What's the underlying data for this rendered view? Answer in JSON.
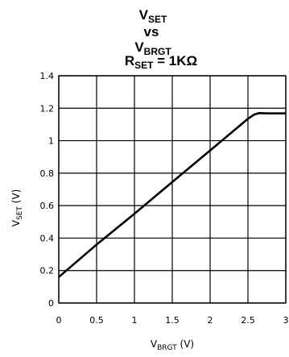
{
  "chart_data": {
    "type": "line",
    "title": {
      "line1": {
        "main": "V",
        "sub": "SET"
      },
      "line2": "vs",
      "line3": {
        "main": "V",
        "sub": "BRGT"
      },
      "line4": {
        "main": "R",
        "sub": "SET",
        "rest": " = 1KΩ"
      }
    },
    "xlabel": {
      "main": "V",
      "sub": "BRGT",
      "rest": " (V)"
    },
    "ylabel": {
      "main": "V",
      "sub": "SET",
      "rest": " (V)"
    },
    "xlim": [
      0,
      3
    ],
    "ylim": [
      0,
      1.4
    ],
    "xticks": [
      {
        "value": 0,
        "label": "0"
      },
      {
        "value": 0.5,
        "label": "0.5"
      },
      {
        "value": 1,
        "label": "1"
      },
      {
        "value": 1.5,
        "label": "1.5"
      },
      {
        "value": 2,
        "label": "2"
      },
      {
        "value": 2.5,
        "label": "2.5"
      },
      {
        "value": 3,
        "label": "3"
      }
    ],
    "yticks": [
      {
        "value": 0,
        "label": "0"
      },
      {
        "value": 0.2,
        "label": "0.2"
      },
      {
        "value": 0.4,
        "label": "0.4"
      },
      {
        "value": 0.6,
        "label": "0.6"
      },
      {
        "value": 0.8,
        "label": "0.8"
      },
      {
        "value": 1,
        "label": "1"
      },
      {
        "value": 1.2,
        "label": "1.2"
      },
      {
        "value": 1.4,
        "label": "1.4"
      }
    ],
    "grid": true,
    "series": [
      {
        "x": [
          0,
          0.5,
          1,
          1.5,
          2,
          2.5,
          2.58,
          2.65,
          2.75,
          3
        ],
        "y": [
          0.16,
          0.36,
          0.55,
          0.745,
          0.94,
          1.135,
          1.16,
          1.17,
          1.168,
          1.168
        ]
      }
    ]
  }
}
